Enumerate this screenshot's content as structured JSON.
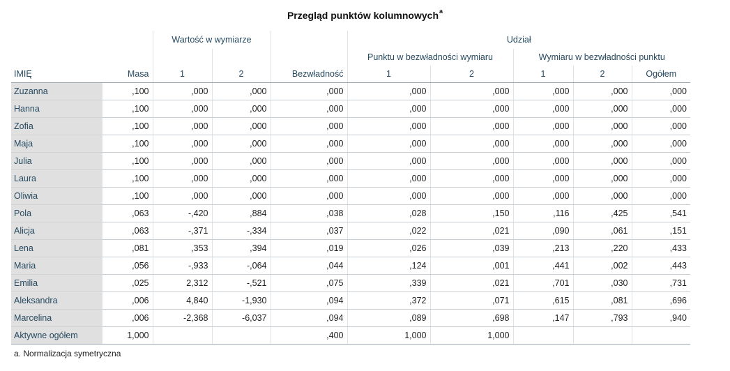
{
  "title": "Przegląd punktów kolumnowych",
  "title_sup": "a",
  "headers": {
    "row_label": "IMIĘ",
    "masa": "Masa",
    "wartosc_group": "Wartość w wymiarze",
    "dim1": "1",
    "dim2": "2",
    "bezwladnosc": "Bezwładność",
    "udzial_group": "Udział",
    "punktu_group": "Punktu w bezwładności wymiaru",
    "wymiaru_group": "Wymiaru w bezwładności punktu",
    "ogolem": "Ogółem"
  },
  "rows": [
    {
      "name": "Zuzanna",
      "masa": ",100",
      "w1": ",000",
      "w2": ",000",
      "bez": ",000",
      "p1": ",000",
      "p2": ",000",
      "d1": ",000",
      "d2": ",000",
      "og": ",000"
    },
    {
      "name": "Hanna",
      "masa": ",100",
      "w1": ",000",
      "w2": ",000",
      "bez": ",000",
      "p1": ",000",
      "p2": ",000",
      "d1": ",000",
      "d2": ",000",
      "og": ",000"
    },
    {
      "name": "Zofia",
      "masa": ",100",
      "w1": ",000",
      "w2": ",000",
      "bez": ",000",
      "p1": ",000",
      "p2": ",000",
      "d1": ",000",
      "d2": ",000",
      "og": ",000"
    },
    {
      "name": "Maja",
      "masa": ",100",
      "w1": ",000",
      "w2": ",000",
      "bez": ",000",
      "p1": ",000",
      "p2": ",000",
      "d1": ",000",
      "d2": ",000",
      "og": ",000"
    },
    {
      "name": "Julia",
      "masa": ",100",
      "w1": ",000",
      "w2": ",000",
      "bez": ",000",
      "p1": ",000",
      "p2": ",000",
      "d1": ",000",
      "d2": ",000",
      "og": ",000"
    },
    {
      "name": "Laura",
      "masa": ",100",
      "w1": ",000",
      "w2": ",000",
      "bez": ",000",
      "p1": ",000",
      "p2": ",000",
      "d1": ",000",
      "d2": ",000",
      "og": ",000"
    },
    {
      "name": "Oliwia",
      "masa": ",100",
      "w1": ",000",
      "w2": ",000",
      "bez": ",000",
      "p1": ",000",
      "p2": ",000",
      "d1": ",000",
      "d2": ",000",
      "og": ",000"
    },
    {
      "name": "Pola",
      "masa": ",063",
      "w1": "-,420",
      "w2": ",884",
      "bez": ",038",
      "p1": ",028",
      "p2": ",150",
      "d1": ",116",
      "d2": ",425",
      "og": ",541"
    },
    {
      "name": "Alicja",
      "masa": ",063",
      "w1": "-,371",
      "w2": "-,334",
      "bez": ",037",
      "p1": ",022",
      "p2": ",021",
      "d1": ",090",
      "d2": ",061",
      "og": ",151"
    },
    {
      "name": "Lena",
      "masa": ",081",
      "w1": ",353",
      "w2": ",394",
      "bez": ",019",
      "p1": ",026",
      "p2": ",039",
      "d1": ",213",
      "d2": ",220",
      "og": ",433"
    },
    {
      "name": "Maria",
      "masa": ",056",
      "w1": "-,933",
      "w2": "-,064",
      "bez": ",044",
      "p1": ",124",
      "p2": ",001",
      "d1": ",441",
      "d2": ",002",
      "og": ",443"
    },
    {
      "name": "Emilia",
      "masa": ",025",
      "w1": "2,312",
      "w2": "-,521",
      "bez": ",075",
      "p1": ",339",
      "p2": ",021",
      "d1": ",701",
      "d2": ",030",
      "og": ",731"
    },
    {
      "name": "Aleksandra",
      "masa": ",006",
      "w1": "4,840",
      "w2": "-1,930",
      "bez": ",094",
      "p1": ",372",
      "p2": ",071",
      "d1": ",615",
      "d2": ",081",
      "og": ",696"
    },
    {
      "name": "Marcelina",
      "masa": ",006",
      "w1": "-2,368",
      "w2": "-6,037",
      "bez": ",094",
      "p1": ",089",
      "p2": ",698",
      "d1": ",147",
      "d2": ",793",
      "og": ",940"
    }
  ],
  "total": {
    "name": "Aktywne ogółem",
    "masa": "1,000",
    "w1": "",
    "w2": "",
    "bez": ",400",
    "p1": "1,000",
    "p2": "1,000",
    "d1": "",
    "d2": "",
    "og": ""
  },
  "footnote": "a. Normalizacja symetryczna"
}
